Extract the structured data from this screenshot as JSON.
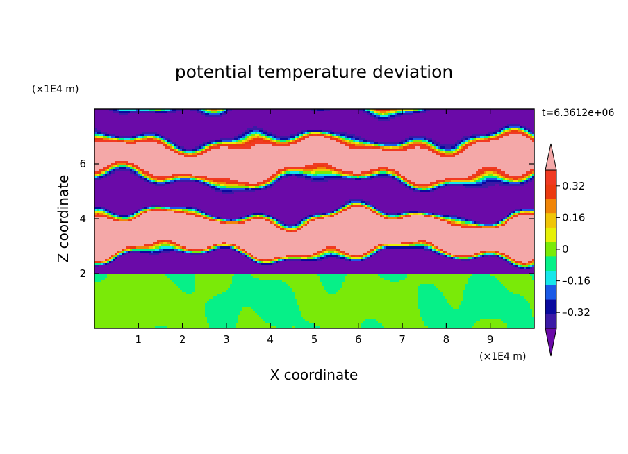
{
  "chart_data": {
    "type": "heatmap",
    "title": "potential temperature deviation",
    "xlabel": "X coordinate",
    "ylabel": "Z coordinate",
    "x_unit": "(×1E4 m)",
    "z_unit": "(×1E4 m)",
    "time_label": "t=6.3612e+06",
    "x_ticks": [
      "1",
      "2",
      "3",
      "4",
      "5",
      "6",
      "7",
      "8",
      "9"
    ],
    "x_tick_values": [
      1,
      2,
      3,
      4,
      5,
      6,
      7,
      8,
      9
    ],
    "z_ticks": [
      "2",
      "4",
      "6"
    ],
    "z_tick_values": [
      2,
      4,
      6
    ],
    "xlim": [
      0,
      10
    ],
    "zlim": [
      0,
      8
    ],
    "colorbar": {
      "levels": [
        -0.48,
        -0.4,
        -0.32,
        -0.24,
        -0.16,
        -0.08,
        0,
        0.08,
        0.16,
        0.24,
        0.32,
        0.4,
        0.48
      ],
      "colors": [
        "#6a0aa8",
        "#3b1aa6",
        "#0a0a9e",
        "#1a5ae6",
        "#15e6ea",
        "#06f088",
        "#7aea08",
        "#e6f008",
        "#f0c508",
        "#f08508",
        "#ea3a10",
        "#f03a22",
        "#f4a8a8"
      ],
      "tick_labels": [
        "0.32",
        "0.16",
        "0",
        "–0.16",
        "–0.32"
      ],
      "tick_values": [
        0.32,
        0.16,
        0,
        -0.16,
        -0.32
      ]
    }
  }
}
